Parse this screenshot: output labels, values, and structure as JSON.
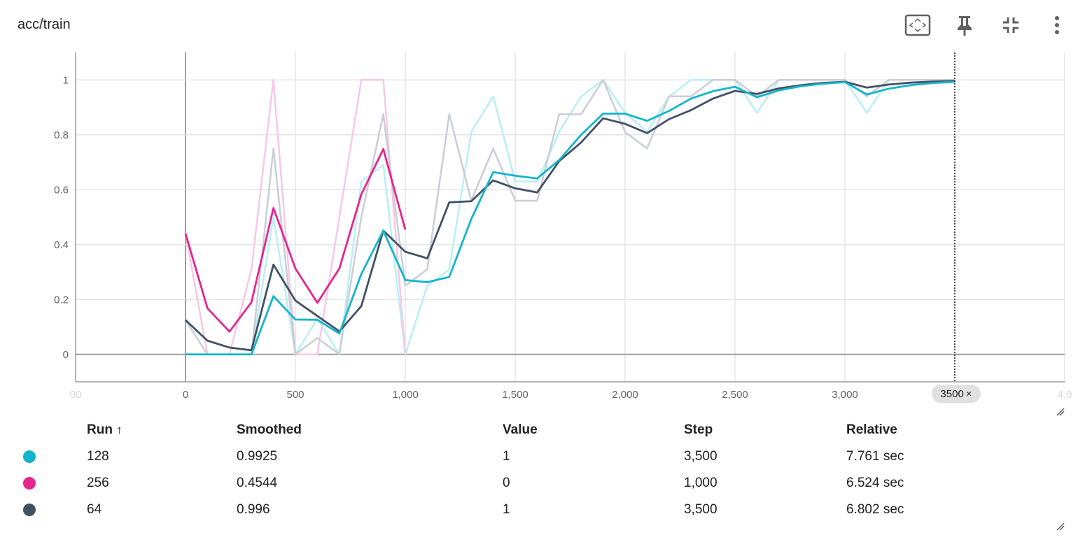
{
  "card": {
    "title": "acc/train",
    "toolbar": [
      {
        "name": "fit-domain-icon"
      },
      {
        "name": "pin-icon"
      },
      {
        "name": "collapse-icon"
      },
      {
        "name": "more-vert-icon"
      }
    ]
  },
  "colors": {
    "run_128": "#12b5cb",
    "run_256": "#e52592",
    "run_64": "#425066",
    "run_128_raw": "#b9eef5",
    "run_256_raw": "#f7c8e3",
    "run_64_raw": "#c9cdd6"
  },
  "chart_data": {
    "type": "line",
    "title": "",
    "xlabel": "",
    "ylabel": "",
    "xlim": [
      -500,
      4000
    ],
    "ylim": [
      -0.1,
      1.1
    ],
    "x_ticks": [
      "00",
      "0",
      "500",
      "1,000",
      "1,500",
      "2,000",
      "2,500",
      "3,000",
      "4,0"
    ],
    "y_ticks": [
      "1",
      "0.8",
      "0.6",
      "0.4",
      "0.2",
      "0"
    ],
    "y_tick_values": [
      1,
      0.8,
      0.6,
      0.4,
      0.2,
      0
    ],
    "x_tick_values": [
      -500,
      0,
      500,
      1000,
      1500,
      2000,
      2500,
      3000,
      4000
    ],
    "grid": true,
    "hover_step": 3500,
    "series": [
      {
        "name": "128",
        "x": [
          0,
          100,
          200,
          300,
          400,
          500,
          600,
          700,
          800,
          900,
          1000,
          1100,
          1200,
          1300,
          1400,
          1500,
          1600,
          1700,
          1800,
          1900,
          2000,
          2100,
          2200,
          2300,
          2400,
          2500,
          2600,
          2700,
          2800,
          2900,
          3000,
          3100,
          3200,
          3300,
          3400,
          3500
        ],
        "raw": [
          0,
          0,
          0,
          0,
          0.5,
          0,
          0.13,
          0,
          0.63,
          0.69,
          0,
          0.25,
          0.31,
          0.81,
          0.94,
          0.63,
          0.63,
          0.81,
          0.94,
          1,
          0.88,
          0.81,
          0.94,
          1,
          1,
          1,
          0.88,
          1,
          1,
          1,
          1,
          0.88,
          1,
          1,
          1,
          1
        ],
        "smoothed": [
          0,
          0,
          0,
          0,
          0.212,
          0.127,
          0.126,
          0.076,
          0.293,
          0.451,
          0.271,
          0.263,
          0.282,
          0.493,
          0.664,
          0.651,
          0.641,
          0.708,
          0.8,
          0.877,
          0.877,
          0.851,
          0.887,
          0.932,
          0.959,
          0.975,
          0.937,
          0.962,
          0.977,
          0.986,
          0.992,
          0.947,
          0.968,
          0.981,
          0.989,
          0.9925
        ]
      },
      {
        "name": "256",
        "x": [
          0,
          100,
          200,
          300,
          400,
          500,
          600,
          700,
          800,
          900,
          1000
        ],
        "raw": [
          0.44,
          0,
          0,
          0.31,
          1,
          0,
          0,
          0.5,
          1,
          1,
          0
        ],
        "smoothed": [
          0.44,
          0.168,
          0.083,
          0.19,
          0.533,
          0.313,
          0.188,
          0.313,
          0.583,
          0.748,
          0.4544
        ]
      },
      {
        "name": "64",
        "x": [
          0,
          100,
          200,
          300,
          400,
          500,
          600,
          700,
          800,
          900,
          1000,
          1100,
          1200,
          1300,
          1400,
          1500,
          1600,
          1700,
          1800,
          1900,
          2000,
          2100,
          2200,
          2300,
          2400,
          2500,
          2600,
          2700,
          2800,
          2900,
          3000,
          3100,
          3200,
          3300,
          3400,
          3500
        ],
        "raw": [
          0.125,
          0,
          0,
          0,
          0.75,
          0,
          0.06,
          0,
          0.5,
          0.875,
          0.25,
          0.31,
          0.875,
          0.56,
          0.75,
          0.56,
          0.56,
          0.875,
          0.875,
          1,
          0.81,
          0.75,
          0.94,
          0.94,
          1,
          1,
          0.94,
          1,
          1,
          1,
          1,
          0.94,
          1,
          1,
          1,
          1
        ],
        "smoothed": [
          0.125,
          0.05,
          0.025,
          0.015,
          0.327,
          0.196,
          0.14,
          0.084,
          0.176,
          0.451,
          0.374,
          0.35,
          0.554,
          0.558,
          0.634,
          0.605,
          0.59,
          0.704,
          0.772,
          0.86,
          0.84,
          0.806,
          0.857,
          0.89,
          0.932,
          0.96,
          0.949,
          0.969,
          0.981,
          0.989,
          0.993,
          0.972,
          0.983,
          0.99,
          0.994,
          0.996
        ]
      }
    ]
  },
  "table": {
    "headers": {
      "run": "Run",
      "run_sort": "↑",
      "smoothed": "Smoothed",
      "value": "Value",
      "step": "Step",
      "relative": "Relative"
    },
    "rows": [
      {
        "run": "128",
        "smoothed": "0.9925",
        "value": "1",
        "step": "3,500",
        "relative": "7.761 sec"
      },
      {
        "run": "256",
        "smoothed": "0.4544",
        "value": "0",
        "step": "1,000",
        "relative": "6.524 sec"
      },
      {
        "run": "64",
        "smoothed": "0.996",
        "value": "1",
        "step": "3,500",
        "relative": "6.802 sec"
      }
    ]
  },
  "hover_chip": {
    "label": "3500",
    "close": "×"
  }
}
